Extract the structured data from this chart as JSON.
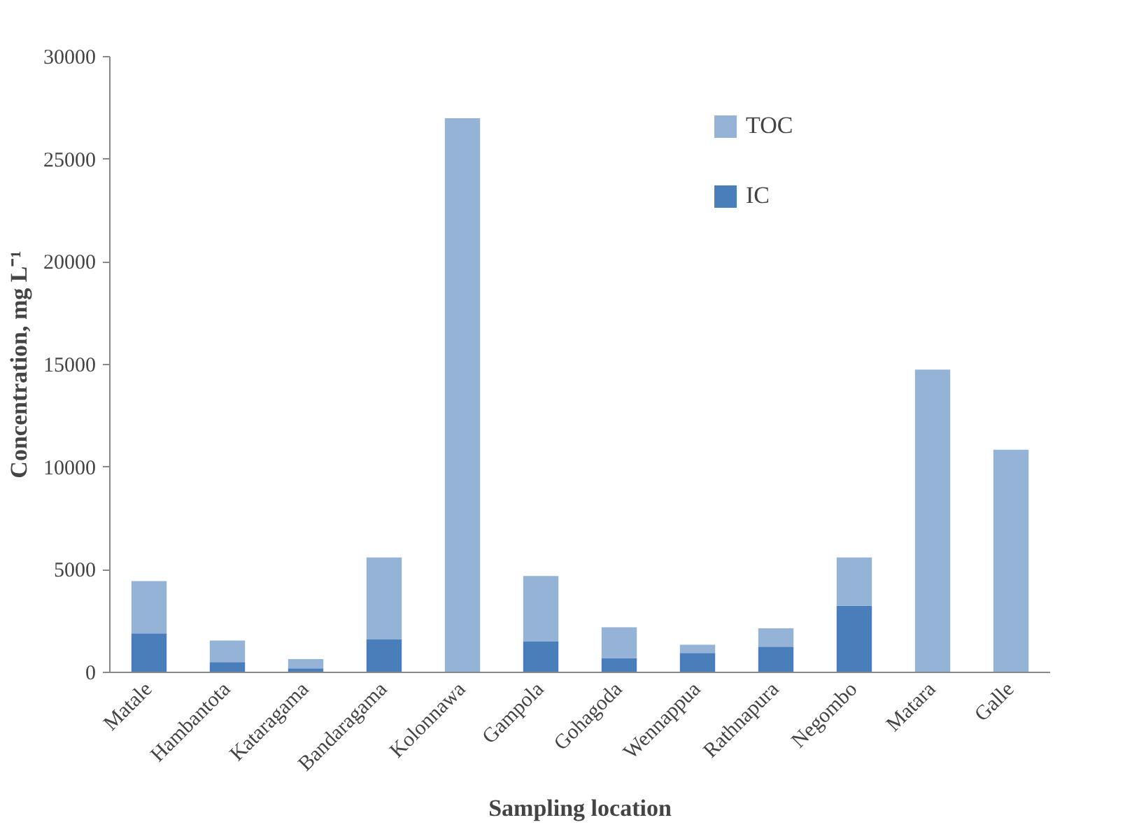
{
  "chart_data": {
    "type": "bar",
    "stacked": true,
    "xlabel": "Sampling location",
    "ylabel": "Concentration, mg L⁻¹",
    "categories": [
      "Matale",
      "Hambantota",
      "Kataragama",
      "Bandaragama",
      "Kolonnawa",
      "Gampola",
      "Gohagoda",
      "Wennappua",
      "Rathnapura",
      "Negombo",
      "Matara",
      "Galle"
    ],
    "series": [
      {
        "name": "IC",
        "color": "#4a7ebb",
        "values": [
          1900,
          500,
          200,
          1600,
          0,
          1500,
          700,
          950,
          1250,
          3250,
          0,
          0
        ]
      },
      {
        "name": "TOC",
        "color": "#95b3d7",
        "values": [
          2550,
          1050,
          450,
          4000,
          27000,
          3200,
          1500,
          400,
          900,
          2350,
          14750,
          10850
        ]
      }
    ],
    "ylim": [
      0,
      30000
    ],
    "yticks": [
      0,
      5000,
      10000,
      15000,
      20000,
      25000,
      30000
    ],
    "grid": false,
    "legend": "top right"
  }
}
